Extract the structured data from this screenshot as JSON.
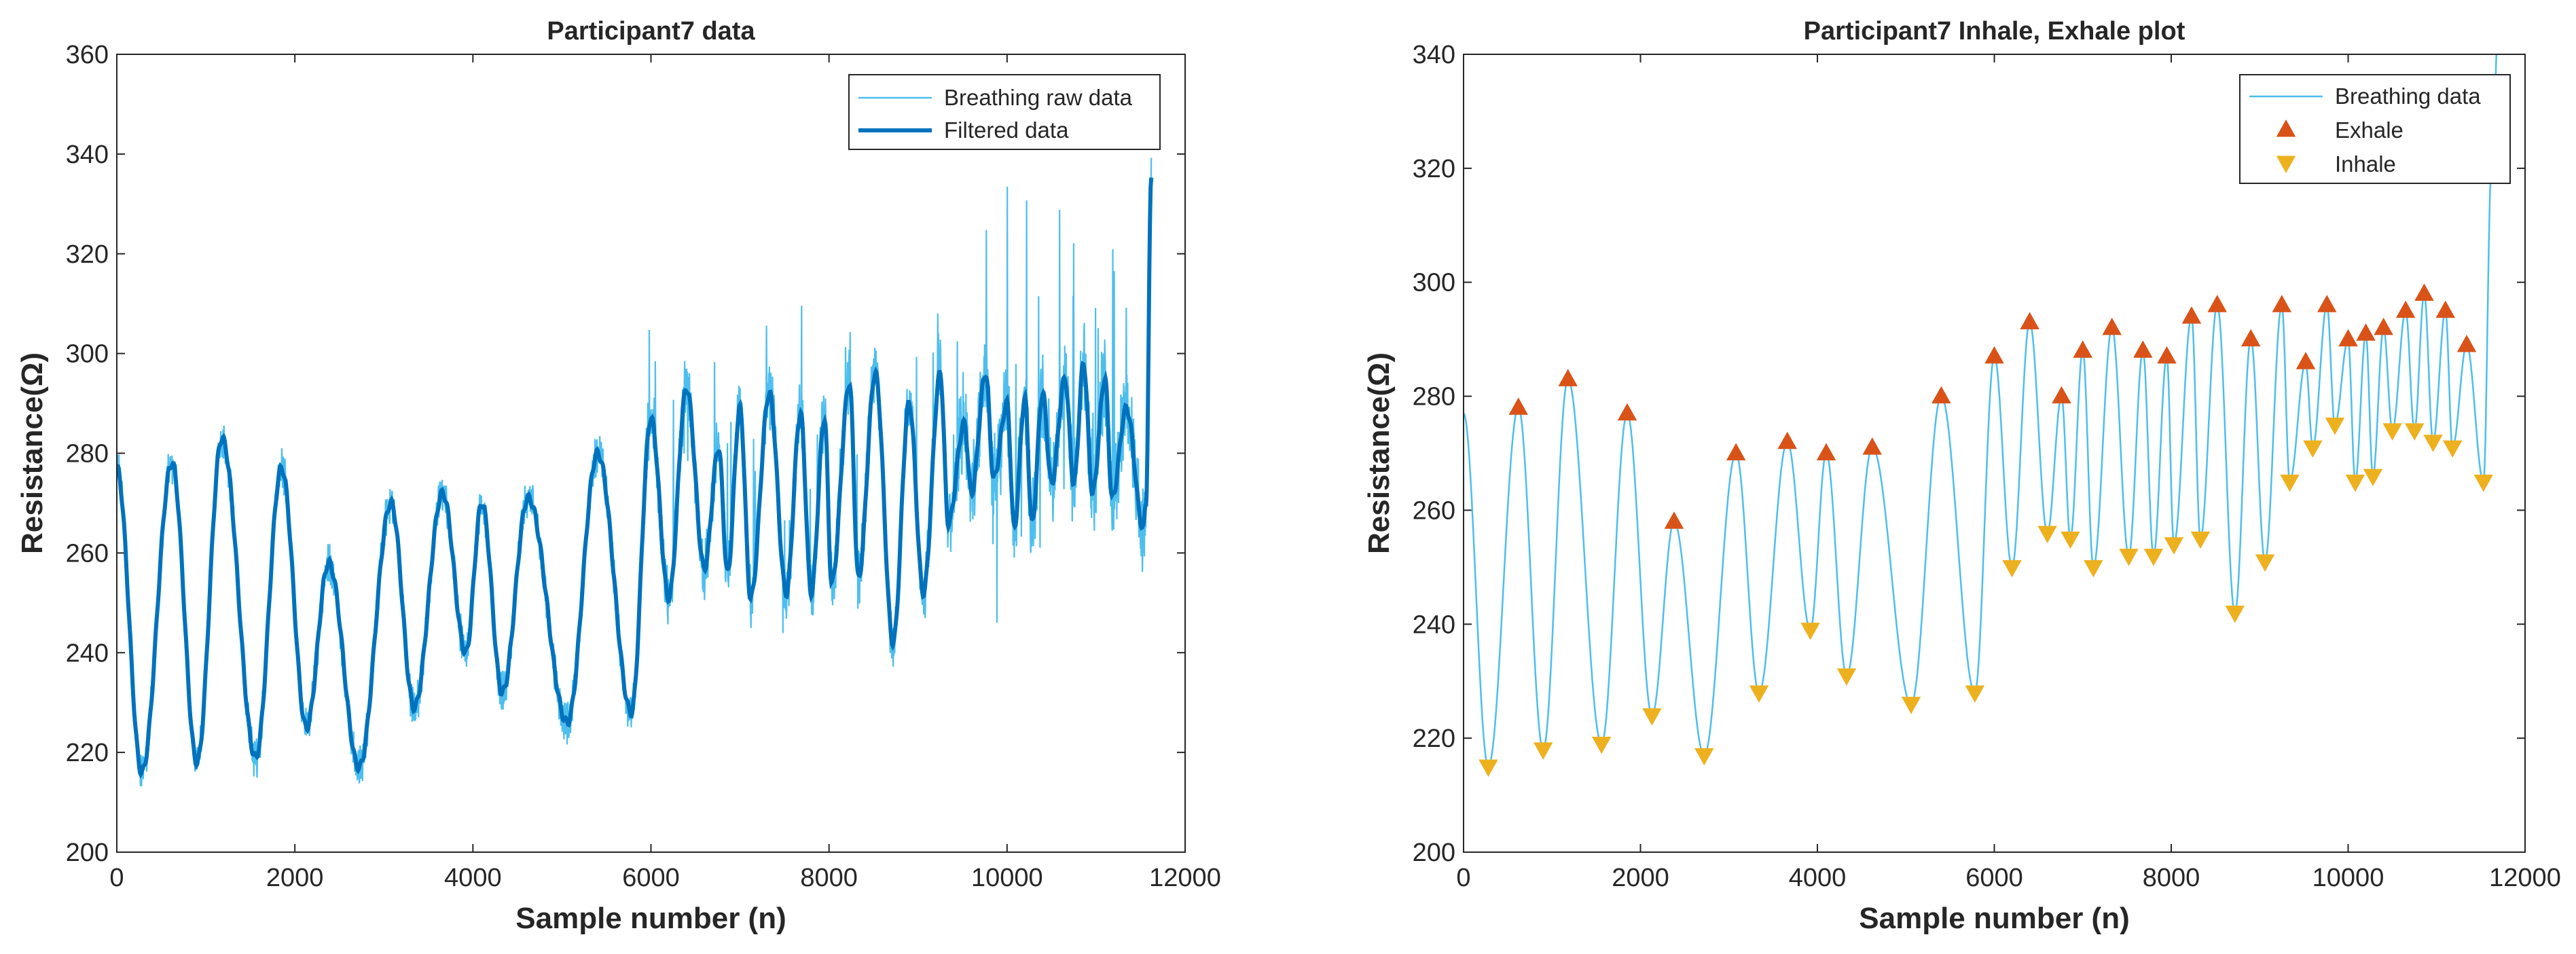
{
  "chart_data": [
    {
      "type": "line",
      "title": "Participant7 data",
      "xlabel": "Sample number (n)",
      "ylabel": "Resistance(Ω)",
      "xlim": [
        0,
        12000
      ],
      "ylim": [
        200,
        360
      ],
      "xticks": [
        "0",
        "2000",
        "4000",
        "6000",
        "8000",
        "10000",
        "12000"
      ],
      "yticks": [
        "200",
        "220",
        "240",
        "260",
        "280",
        "300",
        "320",
        "340",
        "360"
      ],
      "legend_position": "top-right",
      "series": [
        {
          "name": "Breathing raw data",
          "color": "#4DBEEE",
          "style": "thin"
        },
        {
          "name": "Filtered data",
          "color": "#0072BD",
          "style": "thick"
        }
      ],
      "filtered_trough_peaks": [
        [
          0,
          277
        ],
        [
          280,
          216
        ],
        [
          620,
          278
        ],
        [
          900,
          218
        ],
        [
          1180,
          283
        ],
        [
          1560,
          219
        ],
        [
          1850,
          277
        ],
        [
          2130,
          225
        ],
        [
          2380,
          258
        ],
        [
          2720,
          217
        ],
        [
          3080,
          270
        ],
        [
          3340,
          229
        ],
        [
          3660,
          272
        ],
        [
          3920,
          240
        ],
        [
          4100,
          270
        ],
        [
          4330,
          232
        ],
        [
          4620,
          271
        ],
        [
          5060,
          226
        ],
        [
          5400,
          280
        ],
        [
          5780,
          228
        ],
        [
          6000,
          287
        ],
        [
          6200,
          251
        ],
        [
          6400,
          293
        ],
        [
          6600,
          257
        ],
        [
          6760,
          281
        ],
        [
          6860,
          256
        ],
        [
          7000,
          289
        ],
        [
          7120,
          251
        ],
        [
          7330,
          292
        ],
        [
          7520,
          252
        ],
        [
          7680,
          288
        ],
        [
          7800,
          252
        ],
        [
          7950,
          287
        ],
        [
          8030,
          254
        ],
        [
          8230,
          294
        ],
        [
          8330,
          255
        ],
        [
          8520,
          296
        ],
        [
          8720,
          242
        ],
        [
          8900,
          290
        ],
        [
          9060,
          252
        ],
        [
          9250,
          296
        ],
        [
          9340,
          266
        ],
        [
          9520,
          286
        ],
        [
          9600,
          272
        ],
        [
          9760,
          296
        ],
        [
          9850,
          275
        ],
        [
          10000,
          290
        ],
        [
          10080,
          265
        ],
        [
          10200,
          291
        ],
        [
          10280,
          266
        ],
        [
          10400,
          292
        ],
        [
          10500,
          274
        ],
        [
          10650,
          295
        ],
        [
          10750,
          274
        ],
        [
          10860,
          298
        ],
        [
          10960,
          272
        ],
        [
          11100,
          295
        ],
        [
          11180,
          271
        ],
        [
          11340,
          289
        ],
        [
          11530,
          265
        ],
        [
          11560,
          270
        ],
        [
          11620,
          335
        ]
      ]
    },
    {
      "type": "line",
      "title": "Participant7 Inhale, Exhale plot",
      "xlabel": "Sample number (n)",
      "ylabel": "Resistance(Ω)",
      "xlim": [
        0,
        12000
      ],
      "ylim": [
        200,
        340
      ],
      "xticks": [
        "0",
        "2000",
        "4000",
        "6000",
        "8000",
        "10000",
        "12000"
      ],
      "yticks": [
        "200",
        "220",
        "240",
        "260",
        "280",
        "300",
        "320",
        "340"
      ],
      "legend_position": "top-right",
      "series": [
        {
          "name": "Breathing data",
          "color": "#4DBEEE",
          "marker": "line"
        },
        {
          "name": "Exhale",
          "color": "#D95319",
          "marker": "triangle-up"
        },
        {
          "name": "Inhale",
          "color": "#EDB120",
          "marker": "triangle-down"
        }
      ],
      "exhale": {
        "x": [
          620,
          1180,
          1850,
          2380,
          3080,
          3660,
          4100,
          4620,
          5400,
          6000,
          6400,
          6760,
          7000,
          7330,
          7680,
          7950,
          8230,
          8520,
          8900,
          9250,
          9520,
          9760,
          10000,
          10200,
          10400,
          10650,
          10860,
          11100,
          11340
        ],
        "y": [
          278,
          283,
          277,
          258,
          270,
          272,
          270,
          271,
          280,
          287,
          293,
          280,
          288,
          292,
          288,
          287,
          294,
          296,
          290,
          296,
          286,
          296,
          290,
          291,
          292,
          295,
          298,
          295,
          289
        ]
      },
      "inhale": {
        "x": [
          280,
          900,
          1560,
          2130,
          2720,
          3340,
          3920,
          4330,
          5060,
          5780,
          6200,
          6600,
          6860,
          7120,
          7520,
          7800,
          8030,
          8330,
          8720,
          9060,
          9340,
          9600,
          9850,
          10080,
          10280,
          10500,
          10750,
          10960,
          11180,
          11530
        ],
        "y": [
          215,
          218,
          219,
          224,
          217,
          228,
          239,
          231,
          226,
          228,
          250,
          256,
          255,
          250,
          252,
          252,
          254,
          255,
          242,
          251,
          265,
          271,
          275,
          265,
          266,
          274,
          274,
          272,
          271,
          265
        ]
      },
      "end_point": [
        11620,
        320
      ],
      "start_point": [
        0,
        277
      ]
    }
  ]
}
